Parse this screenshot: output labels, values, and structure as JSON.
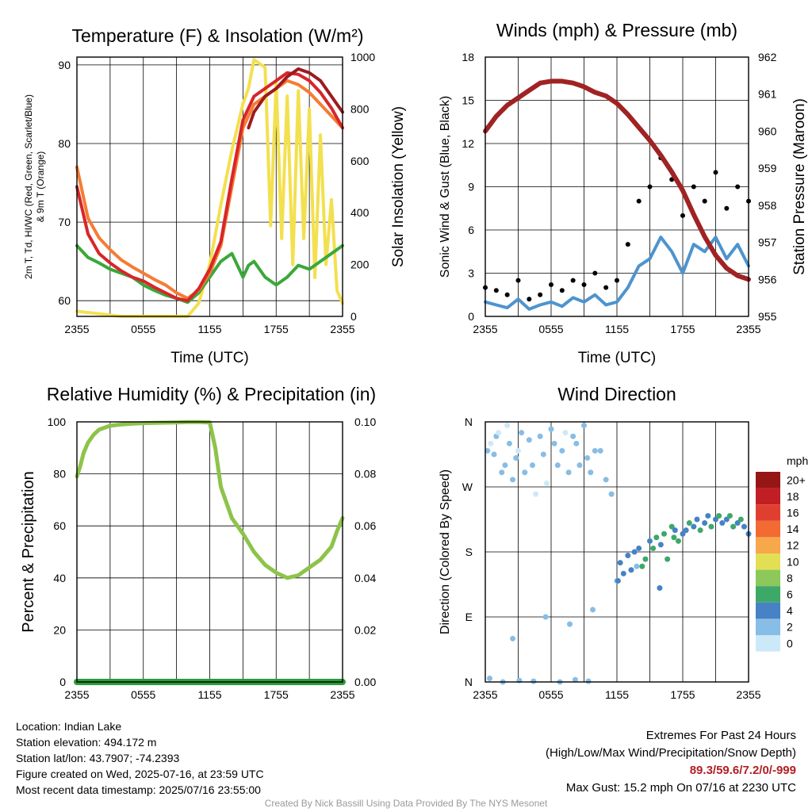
{
  "chart_data": [
    {
      "type": "line",
      "title": "Temperature (F) & Insolation (W/m²)",
      "xlabel": "Time (UTC)",
      "ylabel_left": "2m T, Td, HI/WC (Red, Green, Scarlet/Blue) & 9m T (Orange)",
      "ylabel_right": "Solar Insolation (Yellow)",
      "x_ticks": [
        "2355",
        "0555",
        "1155",
        "1755",
        "2355"
      ],
      "ylim": [
        58,
        91
      ],
      "y_ticks": [
        60,
        70,
        80,
        90
      ],
      "ylim_right": [
        0,
        1000
      ],
      "y_ticks_right": [
        0,
        200,
        400,
        600,
        800,
        1000
      ],
      "grid": true,
      "series": [
        {
          "name": "2m T",
          "color": "#d7262a",
          "axis": "left",
          "x": [
            0,
            1,
            2,
            3,
            4,
            5,
            6,
            7,
            8,
            9,
            10,
            11,
            12,
            13,
            14,
            15,
            16,
            17,
            18,
            19,
            20,
            21,
            22,
            23,
            24
          ],
          "y": [
            74.5,
            68.5,
            66,
            64.8,
            63.8,
            63,
            62.5,
            61.7,
            61,
            60.3,
            60,
            61.5,
            64,
            67.5,
            75.5,
            83,
            86,
            87,
            88,
            89,
            88.8,
            88,
            86.5,
            84.5,
            82
          ]
        },
        {
          "name": "9m T",
          "color": "#f57c33",
          "axis": "left",
          "x": [
            0,
            1,
            2,
            3,
            4,
            5,
            6,
            7,
            8,
            9,
            10,
            11,
            12,
            13,
            14,
            15,
            16,
            17,
            18,
            19,
            20,
            21,
            22,
            23,
            24
          ],
          "y": [
            77,
            70.5,
            68,
            66.5,
            65.2,
            64.3,
            63.5,
            62.7,
            62,
            61,
            60.3,
            61.3,
            63.5,
            67,
            74.5,
            82,
            85,
            86,
            87,
            88,
            87.5,
            86.5,
            85,
            83.5,
            82
          ]
        },
        {
          "name": "Td",
          "color": "#3aa83a",
          "axis": "left",
          "x": [
            0,
            1,
            2,
            3,
            4,
            5,
            6,
            7,
            8,
            9,
            10,
            11,
            12,
            13,
            14,
            15,
            15.5,
            16,
            17,
            18,
            19,
            20,
            21,
            22,
            23,
            24
          ],
          "y": [
            67,
            65.5,
            64.8,
            64,
            63.5,
            63,
            62,
            61.3,
            60.7,
            60.3,
            59.8,
            61,
            63,
            65,
            66,
            63,
            64.5,
            65,
            63,
            62,
            63,
            64.5,
            64,
            65,
            66,
            67
          ]
        },
        {
          "name": "Solar Insolation",
          "color": "#f3e04f",
          "axis": "right",
          "x": [
            0,
            2,
            4,
            6,
            8,
            10,
            11,
            12,
            13,
            14,
            15,
            15.5,
            16,
            17,
            17.5,
            18,
            18.5,
            19,
            19.5,
            20,
            20.5,
            21,
            21.5,
            22,
            22.5,
            23,
            23.5,
            24
          ],
          "y": [
            20,
            10,
            0,
            0,
            0,
            0,
            50,
            200,
            430,
            640,
            820,
            880,
            990,
            960,
            350,
            900,
            300,
            850,
            200,
            870,
            300,
            800,
            150,
            700,
            200,
            450,
            100,
            50
          ]
        },
        {
          "name": "HI/WC",
          "color": "#9c1b1f",
          "axis": "left",
          "x": [
            15.5,
            16,
            17,
            18,
            19,
            20,
            21,
            22,
            23,
            24
          ],
          "y": [
            82,
            84,
            86,
            87,
            88.5,
            89.5,
            89,
            88,
            86,
            84
          ]
        }
      ]
    },
    {
      "type": "line",
      "title": "Winds (mph) & Pressure (mb)",
      "xlabel": "Time (UTC)",
      "ylabel_left": "Sonic Wind & Gust (Blue, Black)",
      "ylabel_right": "Station Pressure (Maroon)",
      "x_ticks": [
        "2355",
        "0555",
        "1155",
        "1755",
        "2355"
      ],
      "ylim": [
        0,
        18
      ],
      "y_ticks": [
        0,
        3,
        6,
        9,
        12,
        15,
        18
      ],
      "ylim_right": [
        955,
        962
      ],
      "y_ticks_right": [
        955,
        956,
        957,
        958,
        959,
        960,
        961,
        962
      ],
      "grid": true,
      "series": [
        {
          "name": "Sonic Wind",
          "color": "#4d94cf",
          "axis": "left",
          "x": [
            0,
            1,
            2,
            3,
            4,
            5,
            6,
            7,
            8,
            9,
            10,
            11,
            12,
            13,
            14,
            15,
            16,
            17,
            18,
            19,
            20,
            21,
            22,
            23,
            24
          ],
          "y": [
            1,
            0.8,
            0.6,
            1.2,
            0.5,
            0.8,
            1,
            0.7,
            1.3,
            1,
            1.5,
            0.8,
            1,
            2,
            3.5,
            4,
            5.5,
            4.5,
            3,
            5,
            4.5,
            5.5,
            4,
            5,
            3.5
          ]
        },
        {
          "name": "Gust",
          "color": "#000000",
          "axis": "left",
          "marker": "dot",
          "x": [
            0,
            1,
            2,
            3,
            4,
            5,
            6,
            7,
            8,
            9,
            10,
            11,
            12,
            13,
            14,
            15,
            16,
            17,
            18,
            19,
            20,
            21,
            22,
            23,
            24
          ],
          "y": [
            2,
            1.8,
            1.5,
            2.5,
            1.2,
            1.5,
            2.2,
            1.8,
            2.5,
            2.2,
            3,
            2,
            2.5,
            5,
            8,
            9,
            11,
            9.5,
            7,
            9,
            8,
            10,
            7.5,
            9,
            8
          ]
        },
        {
          "name": "Station Pressure",
          "color": "#a02324",
          "axis": "right",
          "x": [
            0,
            1,
            2,
            3,
            4,
            5,
            6,
            7,
            8,
            9,
            10,
            11,
            12,
            13,
            14,
            15,
            16,
            17,
            18,
            19,
            20,
            21,
            22,
            23,
            24
          ],
          "y": [
            960.0,
            960.4,
            960.7,
            960.9,
            961.1,
            961.3,
            961.35,
            961.35,
            961.3,
            961.2,
            961.05,
            960.95,
            960.75,
            960.45,
            960.1,
            959.75,
            959.35,
            958.9,
            958.4,
            957.75,
            957.15,
            956.65,
            956.3,
            956.1,
            956.0
          ]
        }
      ]
    },
    {
      "type": "line",
      "title": "Relative Humidity (%) & Precipitation (in)",
      "ylabel_left": "Percent & Precipitation",
      "x_ticks": [
        "2355",
        "0555",
        "1155",
        "1755",
        "2355"
      ],
      "ylim": [
        0,
        100
      ],
      "y_ticks": [
        0,
        20,
        40,
        60,
        80,
        100
      ],
      "ylim_right": [
        0,
        0.1
      ],
      "y_ticks_right": [
        "0.00",
        "0.02",
        "0.04",
        "0.06",
        "0.08",
        "0.10"
      ],
      "grid": true,
      "series": [
        {
          "name": "Relative Humidity",
          "color": "#8ec34a",
          "axis": "left",
          "x": [
            0,
            0.3,
            0.6,
            1,
            1.5,
            2,
            3,
            4,
            5,
            6,
            7,
            8,
            9,
            10,
            11,
            12,
            12.5,
            13,
            14,
            15,
            16,
            17,
            18,
            18.5,
            19,
            20,
            21,
            22,
            23,
            23.5,
            24
          ],
          "y": [
            79,
            83,
            88,
            92,
            95,
            97,
            98.5,
            99,
            99.3,
            99.5,
            99.6,
            99.7,
            99.8,
            99.9,
            99.9,
            99.8,
            90,
            75,
            63,
            57,
            50,
            45,
            42,
            41,
            40,
            41,
            44,
            47,
            52,
            58,
            63
          ]
        },
        {
          "name": "Precipitation",
          "color": "#2c9b3c",
          "axis": "right",
          "x": [
            0,
            24
          ],
          "y": [
            0,
            0
          ]
        }
      ]
    },
    {
      "type": "scatter",
      "title": "Wind Direction",
      "ylabel_left": "Direction (Colored By Speed)",
      "x_ticks": [
        "2355",
        "0555",
        "1155",
        "1755",
        "2355"
      ],
      "y_ticks": [
        "N",
        "E",
        "S",
        "W",
        "N"
      ],
      "ylim": [
        0,
        360
      ],
      "legend_title": "mph",
      "legend_labels": [
        "0",
        "2",
        "4",
        "6",
        "8",
        "10",
        "12",
        "14",
        "16",
        "18",
        "20+"
      ],
      "legend_colors": [
        "#cde9f8",
        "#87bde6",
        "#4682c4",
        "#3ea869",
        "#8cc85a",
        "#e3df55",
        "#f6a84b",
        "#f16b33",
        "#e03f2f",
        "#c21e26",
        "#961515"
      ],
      "grid": true,
      "x": [
        0.2,
        0.5,
        0.8,
        1,
        1.2,
        1.5,
        1.8,
        2,
        2.2,
        2.5,
        2.8,
        3,
        3.3,
        3.6,
        4,
        4.3,
        4.6,
        5,
        5.3,
        5.6,
        6,
        6.3,
        6.6,
        7,
        7.3,
        7.6,
        8,
        8.3,
        8.6,
        9,
        9.3,
        9.6,
        10,
        10.5,
        11,
        11.5,
        12,
        12.3,
        12.6,
        13,
        13.3,
        13.6,
        14,
        14.3,
        14.6,
        15,
        15.3,
        15.6,
        16,
        16.3,
        16.6,
        17,
        17.3,
        17.6,
        18,
        18.3,
        18.6,
        19,
        19.3,
        19.6,
        20,
        20.3,
        20.6,
        21,
        21.3,
        21.6,
        22,
        22.3,
        22.6,
        23,
        23.3,
        23.6,
        24,
        0.4,
        1.6,
        3.1,
        4.4,
        6.8,
        8.2,
        9.4,
        2.5,
        5.5,
        7.7,
        9.8,
        12.1,
        13.8,
        15.9,
        17.2
      ],
      "y": [
        320,
        330,
        315,
        340,
        345,
        290,
        300,
        355,
        330,
        280,
        310,
        320,
        345,
        290,
        335,
        300,
        260,
        340,
        315,
        275,
        350,
        330,
        300,
        320,
        345,
        290,
        340,
        330,
        300,
        355,
        310,
        290,
        320,
        320,
        280,
        260,
        140,
        165,
        150,
        175,
        155,
        180,
        185,
        160,
        170,
        195,
        185,
        200,
        190,
        205,
        170,
        215,
        210,
        195,
        205,
        210,
        220,
        215,
        225,
        210,
        220,
        230,
        215,
        225,
        230,
        220,
        225,
        230,
        215,
        220,
        225,
        215,
        205,
        5,
        0,
        2,
        1,
        0,
        3,
        1,
        60,
        90,
        80,
        100,
        140,
        160,
        130,
        200
      ],
      "speeds": [
        1,
        0.5,
        1,
        1,
        0.5,
        1,
        1,
        0.5,
        1,
        1,
        1,
        0.5,
        1,
        1,
        1,
        1,
        0.5,
        1,
        1,
        0.5,
        1,
        1,
        1,
        1,
        0.5,
        1,
        1,
        1,
        1,
        1,
        1,
        1,
        1,
        1,
        1,
        2,
        2,
        3,
        3,
        4,
        4,
        3,
        4,
        5,
        5,
        4,
        6,
        5,
        4,
        5,
        6,
        5,
        4,
        5,
        3,
        4,
        5,
        4,
        4,
        5,
        3,
        4,
        5,
        4,
        5,
        4,
        4,
        5,
        6,
        4,
        5,
        4,
        3,
        1,
        1,
        1,
        1,
        1,
        1,
        1,
        1,
        1,
        2,
        1,
        3,
        2,
        4,
        5
      ]
    }
  ],
  "info": {
    "location": "Location: Indian Lake",
    "elevation": "Station elevation: 494.172 m",
    "latlon": "Station lat/lon: 43.7907; -74.2393",
    "created": "Figure created on Wed, 2025-07-16, at 23:59 UTC",
    "recent": "Most recent data timestamp: 2025/07/16 23:55:00"
  },
  "extremes": {
    "title": "Extremes For Past 24 Hours",
    "subtitle": "(High/Low/Max Wind/Precipitation/Snow Depth)",
    "values": "89.3/59.6/7.2/0/-999",
    "gust": "Max Gust: 15.2 mph On 07/16 at 2230 UTC"
  },
  "credit": "Created By Nick Bassill Using Data Provided By The NYS Mesonet"
}
